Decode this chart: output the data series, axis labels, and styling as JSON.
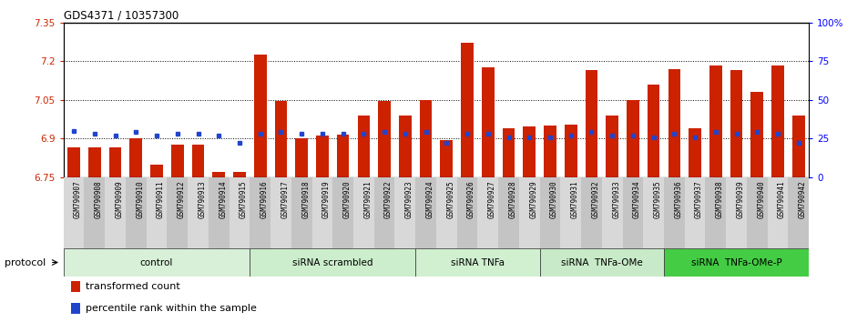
{
  "title": "GDS4371 / 10357300",
  "samples": [
    "GSM790907",
    "GSM790908",
    "GSM790909",
    "GSM790910",
    "GSM790911",
    "GSM790912",
    "GSM790913",
    "GSM790914",
    "GSM790915",
    "GSM790916",
    "GSM790917",
    "GSM790918",
    "GSM790919",
    "GSM790920",
    "GSM790921",
    "GSM790922",
    "GSM790923",
    "GSM790924",
    "GSM790925",
    "GSM790926",
    "GSM790927",
    "GSM790928",
    "GSM790929",
    "GSM790930",
    "GSM790931",
    "GSM790932",
    "GSM790933",
    "GSM790934",
    "GSM790935",
    "GSM790936",
    "GSM790937",
    "GSM790938",
    "GSM790939",
    "GSM790940",
    "GSM790941",
    "GSM790942"
  ],
  "red_values": [
    6.865,
    6.865,
    6.865,
    6.9,
    6.8,
    6.875,
    6.875,
    6.77,
    6.77,
    7.225,
    7.045,
    6.9,
    6.91,
    6.915,
    6.99,
    7.045,
    6.99,
    7.05,
    6.895,
    7.27,
    7.175,
    6.94,
    6.945,
    6.95,
    6.955,
    7.165,
    6.99,
    7.05,
    7.11,
    7.17,
    6.94,
    7.185,
    7.165,
    7.08,
    7.185,
    6.99
  ],
  "blue_percentiles": [
    30,
    28,
    27,
    29,
    27,
    28,
    28,
    27,
    22,
    28,
    29,
    28,
    28,
    28,
    28,
    29,
    28,
    29,
    22,
    28,
    28,
    26,
    26,
    26,
    27,
    29,
    27,
    27,
    26,
    28,
    26,
    29,
    28,
    29,
    28,
    22
  ],
  "ylim_left": [
    6.75,
    7.35
  ],
  "ylim_right": [
    0,
    100
  ],
  "yticks_left": [
    6.75,
    6.9,
    7.05,
    7.2,
    7.35
  ],
  "ytick_labels_left": [
    "6.75",
    "6.9",
    "7.05",
    "7.2",
    "7.35"
  ],
  "yticks_right": [
    0,
    25,
    50,
    75,
    100
  ],
  "ytick_labels_right": [
    "0",
    "25",
    "50",
    "75",
    "100%"
  ],
  "hlines": [
    6.9,
    7.05,
    7.2
  ],
  "bar_color": "#cc2200",
  "blue_color": "#2244cc",
  "protocol_groups": [
    {
      "label": "control",
      "start": 0,
      "end": 9,
      "color": "#d8f0d8"
    },
    {
      "label": "siRNA scrambled",
      "start": 9,
      "end": 17,
      "color": "#cceecc"
    },
    {
      "label": "siRNA TNFa",
      "start": 17,
      "end": 23,
      "color": "#d0f0d0"
    },
    {
      "label": "siRNA  TNFa-OMe",
      "start": 23,
      "end": 29,
      "color": "#c8eac8"
    },
    {
      "label": "siRNA  TNFa-OMe-P",
      "start": 29,
      "end": 36,
      "color": "#44cc44"
    }
  ],
  "legend_items": [
    {
      "label": "transformed count",
      "color": "#cc2200"
    },
    {
      "label": "percentile rank within the sample",
      "color": "#2244cc"
    }
  ]
}
